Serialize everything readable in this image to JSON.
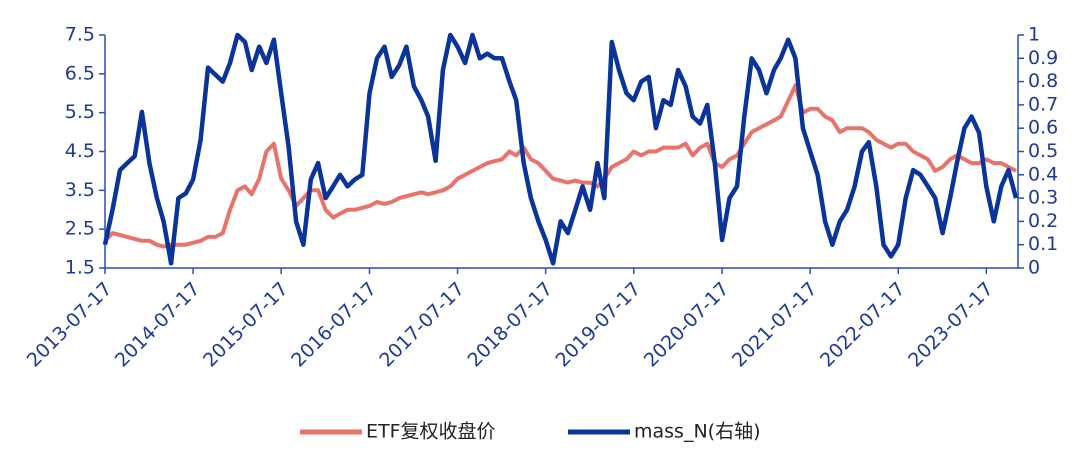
{
  "chart_data": {
    "type": "line",
    "legend": "bottom",
    "x": [
      "2013-07-17",
      "2013-08-17",
      "2013-09-17",
      "2013-10-17",
      "2013-11-17",
      "2013-12-17",
      "2014-01-17",
      "2014-02-17",
      "2014-03-17",
      "2014-04-17",
      "2014-05-17",
      "2014-06-17",
      "2014-07-17",
      "2014-08-17",
      "2014-09-17",
      "2014-10-17",
      "2014-11-17",
      "2014-12-17",
      "2015-01-17",
      "2015-02-17",
      "2015-03-17",
      "2015-04-17",
      "2015-05-17",
      "2015-06-17",
      "2015-07-17",
      "2015-08-17",
      "2015-09-17",
      "2015-10-17",
      "2015-11-17",
      "2015-12-17",
      "2016-01-17",
      "2016-02-17",
      "2016-03-17",
      "2016-04-17",
      "2016-05-17",
      "2016-06-17",
      "2016-07-17",
      "2016-08-17",
      "2016-09-17",
      "2016-10-17",
      "2016-11-17",
      "2016-12-17",
      "2017-01-17",
      "2017-02-17",
      "2017-03-17",
      "2017-04-17",
      "2017-05-17",
      "2017-06-17",
      "2017-07-17",
      "2017-08-17",
      "2017-09-17",
      "2017-10-17",
      "2017-11-17",
      "2017-12-17",
      "2018-01-17",
      "2018-02-17",
      "2018-03-17",
      "2018-04-17",
      "2018-05-17",
      "2018-06-17",
      "2018-07-17",
      "2018-08-17",
      "2018-09-17",
      "2018-10-17",
      "2018-11-17",
      "2018-12-17",
      "2019-01-17",
      "2019-02-17",
      "2019-03-17",
      "2019-04-17",
      "2019-05-17",
      "2019-06-17",
      "2019-07-17",
      "2019-08-17",
      "2019-09-17",
      "2019-10-17",
      "2019-11-17",
      "2019-12-17",
      "2020-01-17",
      "2020-02-17",
      "2020-03-17",
      "2020-04-17",
      "2020-05-17",
      "2020-06-17",
      "2020-07-17",
      "2020-08-17",
      "2020-09-17",
      "2020-10-17",
      "2020-11-17",
      "2020-12-17",
      "2021-01-17",
      "2021-02-17",
      "2021-03-17",
      "2021-04-17",
      "2021-05-17",
      "2021-06-17",
      "2021-07-17",
      "2021-08-17",
      "2021-09-17",
      "2021-10-17",
      "2021-11-17",
      "2021-12-17",
      "2022-01-17",
      "2022-02-17",
      "2022-03-17",
      "2022-04-17",
      "2022-05-17",
      "2022-06-17",
      "2022-07-17",
      "2022-08-17",
      "2022-09-17",
      "2022-10-17",
      "2022-11-17",
      "2022-12-17",
      "2023-01-17",
      "2023-02-17",
      "2023-03-17",
      "2023-04-17",
      "2023-05-17",
      "2023-06-17",
      "2023-07-17",
      "2023-08-17",
      "2023-09-17",
      "2023-10-17",
      "2023-11-17"
    ],
    "xlim": [
      "2013-07-17",
      "2023-11-17"
    ],
    "xticks": [
      "2013-07-17",
      "2014-07-17",
      "2015-07-17",
      "2016-07-17",
      "2017-07-17",
      "2018-07-17",
      "2019-07-17",
      "2020-07-17",
      "2021-07-17",
      "2022-07-17",
      "2023-07-17"
    ],
    "ylim": [
      1.5,
      7.5
    ],
    "yticks": [
      1.5,
      2.5,
      3.5,
      4.5,
      5.5,
      6.5,
      7.5
    ],
    "y2lim": [
      0,
      1
    ],
    "y2ticks": [
      0,
      0.1,
      0.2,
      0.3,
      0.4,
      0.5,
      0.6,
      0.7,
      0.8,
      0.9,
      1
    ],
    "series": [
      {
        "name": "ETF复权收盘价",
        "color": "#e8736b",
        "values": [
          2.2,
          2.4,
          2.35,
          2.3,
          2.25,
          2.2,
          2.2,
          2.1,
          2.05,
          2.1,
          2.1,
          2.1,
          2.15,
          2.2,
          2.3,
          2.3,
          2.4,
          3.0,
          3.5,
          3.6,
          3.4,
          3.8,
          4.5,
          4.7,
          3.8,
          3.5,
          3.1,
          3.3,
          3.5,
          3.5,
          3.0,
          2.8,
          2.9,
          3.0,
          3.0,
          3.05,
          3.1,
          3.2,
          3.15,
          3.2,
          3.3,
          3.35,
          3.4,
          3.45,
          3.4,
          3.45,
          3.5,
          3.6,
          3.8,
          3.9,
          4.0,
          4.1,
          4.2,
          4.25,
          4.3,
          4.5,
          4.4,
          4.6,
          4.3,
          4.2,
          4.0,
          3.8,
          3.75,
          3.7,
          3.75,
          3.7,
          3.7,
          3.6,
          3.8,
          4.1,
          4.2,
          4.3,
          4.5,
          4.4,
          4.5,
          4.5,
          4.6,
          4.6,
          4.6,
          4.7,
          4.4,
          4.6,
          4.7,
          4.2,
          4.1,
          4.3,
          4.4,
          4.7,
          5.0,
          5.1,
          5.2,
          5.3,
          5.4,
          5.8,
          6.2,
          5.5,
          5.6,
          5.6,
          5.4,
          5.3,
          5.0,
          5.1,
          5.1,
          5.1,
          5.0,
          4.8,
          4.7,
          4.6,
          4.7,
          4.7,
          4.5,
          4.4,
          4.3,
          4.0,
          4.1,
          4.3,
          4.4,
          4.3,
          4.2,
          4.2,
          4.3,
          4.2,
          4.2,
          4.1,
          4.0
        ]
      },
      {
        "name": "mass_N(右轴)",
        "color": "#0a349a",
        "axis": "y2",
        "values": [
          0.1,
          0.25,
          0.42,
          0.45,
          0.48,
          0.67,
          0.45,
          0.3,
          0.2,
          0.02,
          0.3,
          0.32,
          0.38,
          0.55,
          0.86,
          0.83,
          0.8,
          0.88,
          1.0,
          0.97,
          0.85,
          0.95,
          0.88,
          0.98,
          0.75,
          0.52,
          0.2,
          0.1,
          0.38,
          0.45,
          0.3,
          0.35,
          0.4,
          0.35,
          0.38,
          0.4,
          0.75,
          0.9,
          0.95,
          0.82,
          0.87,
          0.95,
          0.78,
          0.72,
          0.65,
          0.46,
          0.85,
          1.0,
          0.95,
          0.88,
          1.0,
          0.9,
          0.92,
          0.9,
          0.9,
          0.8,
          0.72,
          0.45,
          0.3,
          0.2,
          0.12,
          0.02,
          0.2,
          0.15,
          0.25,
          0.35,
          0.25,
          0.45,
          0.3,
          0.97,
          0.85,
          0.75,
          0.72,
          0.8,
          0.82,
          0.6,
          0.72,
          0.7,
          0.85,
          0.78,
          0.65,
          0.62,
          0.7,
          0.45,
          0.12,
          0.3,
          0.35,
          0.65,
          0.9,
          0.85,
          0.75,
          0.85,
          0.9,
          0.98,
          0.9,
          0.6,
          0.5,
          0.4,
          0.2,
          0.1,
          0.2,
          0.25,
          0.35,
          0.5,
          0.54,
          0.35,
          0.1,
          0.05,
          0.1,
          0.3,
          0.42,
          0.4,
          0.35,
          0.3,
          0.15,
          0.3,
          0.45,
          0.6,
          0.65,
          0.58,
          0.35,
          0.2,
          0.35,
          0.42,
          0.3
        ]
      }
    ]
  }
}
